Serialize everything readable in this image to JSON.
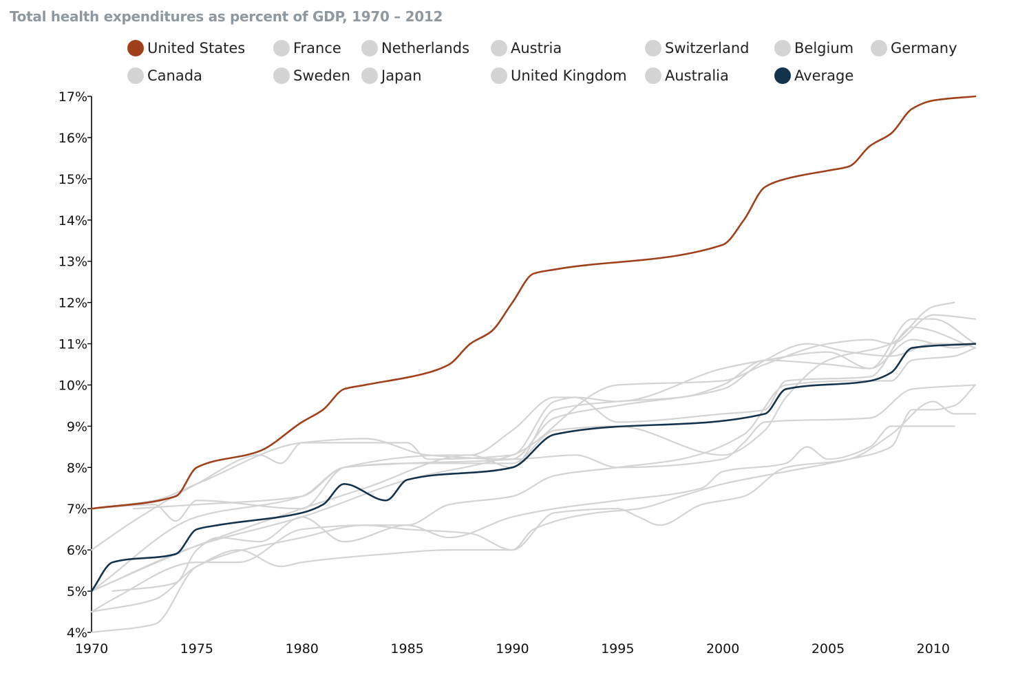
{
  "title": "Total health expenditures as percent of GDP, 1970 – 2012",
  "colors": {
    "us": "#a0401a",
    "average": "#13334d",
    "other": "#d3d3d3",
    "axis": "#000000",
    "title": "#8e98a1"
  },
  "legend": [
    {
      "label": "United States",
      "color": "#a0401a"
    },
    {
      "label": "France",
      "color": "#d3d3d3"
    },
    {
      "label": "Netherlands",
      "color": "#d3d3d3"
    },
    {
      "label": "Austria",
      "color": "#d3d3d3"
    },
    {
      "label": "Switzerland",
      "color": "#d3d3d3"
    },
    {
      "label": "Belgium",
      "color": "#d3d3d3"
    },
    {
      "label": "Germany",
      "color": "#d3d3d3"
    },
    {
      "label": "Canada",
      "color": "#d3d3d3"
    },
    {
      "label": "Sweden",
      "color": "#d3d3d3"
    },
    {
      "label": "Japan",
      "color": "#d3d3d3"
    },
    {
      "label": "United Kingdom",
      "color": "#d3d3d3"
    },
    {
      "label": "Australia",
      "color": "#d3d3d3"
    },
    {
      "label": "Average",
      "color": "#13334d"
    }
  ],
  "chart_data": {
    "type": "line",
    "title": "Total health expenditures as percent of GDP, 1970 – 2012",
    "xlabel": "",
    "ylabel": "",
    "xlim": [
      1970,
      2012
    ],
    "ylim": [
      4,
      17
    ],
    "x_ticks": [
      1970,
      1975,
      1980,
      1985,
      1990,
      1995,
      2000,
      2005,
      2010
    ],
    "y_ticks": [
      4,
      5,
      6,
      7,
      8,
      9,
      10,
      11,
      12,
      13,
      14,
      15,
      16,
      17
    ],
    "y_tick_labels": [
      "4%",
      "5%",
      "6%",
      "7%",
      "8%",
      "9%",
      "10%",
      "11%",
      "12%",
      "13%",
      "14%",
      "15%",
      "16%",
      "17%"
    ],
    "x_tick_labels": [
      "1970",
      "1975",
      "1980",
      "1985",
      "1990",
      "1995",
      "2000",
      "2005",
      "2010"
    ],
    "grid": false,
    "legend_position": "top",
    "series": [
      {
        "name": "United States",
        "color": "#a0401a",
        "width": 2.6,
        "points": [
          [
            1970,
            7.0
          ],
          [
            1974,
            7.3
          ],
          [
            1975,
            8.0
          ],
          [
            1978,
            8.4
          ],
          [
            1980,
            9.1
          ],
          [
            1981,
            9.4
          ],
          [
            1982,
            9.9
          ],
          [
            1983,
            10.0
          ],
          [
            1986,
            10.3
          ],
          [
            1987,
            10.5
          ],
          [
            1988,
            11.0
          ],
          [
            1989,
            11.3
          ],
          [
            1990,
            12.0
          ],
          [
            1991,
            12.7
          ],
          [
            1992,
            12.8
          ],
          [
            2000,
            13.4
          ],
          [
            2001,
            14.0
          ],
          [
            2002,
            14.8
          ],
          [
            2003,
            15.0
          ],
          [
            2005,
            15.2
          ],
          [
            2006,
            15.3
          ],
          [
            2007,
            15.8
          ],
          [
            2008,
            16.1
          ],
          [
            2009,
            16.7
          ],
          [
            2010,
            16.9
          ],
          [
            2012,
            17.0
          ]
        ]
      },
      {
        "name": "France",
        "color": "#d3d3d3",
        "width": 2.2,
        "points": [
          [
            1970,
            5.0
          ],
          [
            1975,
            6.1
          ],
          [
            1980,
            6.8
          ],
          [
            1985,
            7.7
          ],
          [
            1990,
            8.3
          ],
          [
            1995,
            10.0
          ],
          [
            2000,
            10.1
          ],
          [
            2002,
            10.5
          ],
          [
            2005,
            11.0
          ],
          [
            2007,
            11.1
          ],
          [
            2008,
            11.0
          ],
          [
            2010,
            11.7
          ],
          [
            2012,
            11.6
          ]
        ]
      },
      {
        "name": "Netherlands",
        "color": "#d3d3d3",
        "width": 2.2,
        "points": [
          [
            1972,
            7.0
          ],
          [
            1975,
            7.1
          ],
          [
            1980,
            7.3
          ],
          [
            1982,
            8.0
          ],
          [
            1985,
            8.1
          ],
          [
            1990,
            8.1
          ],
          [
            1992,
            8.9
          ],
          [
            1995,
            9.0
          ],
          [
            2000,
            8.3
          ],
          [
            2002,
            8.9
          ],
          [
            2003,
            9.7
          ],
          [
            2005,
            10.6
          ],
          [
            2008,
            11.0
          ],
          [
            2010,
            11.9
          ],
          [
            2011,
            12.0
          ]
        ]
      },
      {
        "name": "Austria",
        "color": "#d3d3d3",
        "width": 2.2,
        "points": [
          [
            1970,
            5.0
          ],
          [
            1975,
            6.1
          ],
          [
            1980,
            7.0
          ],
          [
            1983,
            7.5
          ],
          [
            1988,
            8.3
          ],
          [
            1990,
            8.0
          ],
          [
            1992,
            9.4
          ],
          [
            1995,
            9.6
          ],
          [
            1998,
            9.7
          ],
          [
            2000,
            10.0
          ],
          [
            2002,
            10.6
          ],
          [
            2005,
            10.5
          ],
          [
            2007,
            10.4
          ],
          [
            2009,
            11.1
          ],
          [
            2011,
            10.9
          ],
          [
            2012,
            11.0
          ]
        ]
      },
      {
        "name": "Switzerland",
        "color": "#d3d3d3",
        "width": 2.2,
        "points": [
          [
            1970,
            5.0
          ],
          [
            1975,
            6.8
          ],
          [
            1980,
            7.3
          ],
          [
            1982,
            8.0
          ],
          [
            1985,
            8.1
          ],
          [
            1990,
            8.2
          ],
          [
            1992,
            9.2
          ],
          [
            1995,
            9.5
          ],
          [
            2000,
            9.9
          ],
          [
            2002,
            10.6
          ],
          [
            2004,
            11.0
          ],
          [
            2006,
            10.8
          ],
          [
            2008,
            10.7
          ],
          [
            2010,
            11.0
          ],
          [
            2012,
            11.0
          ]
        ]
      },
      {
        "name": "Belgium",
        "color": "#d3d3d3",
        "width": 2.2,
        "points": [
          [
            1970,
            4.0
          ],
          [
            1973,
            4.2
          ],
          [
            1975,
            5.6
          ],
          [
            1980,
            6.3
          ],
          [
            1983,
            6.6
          ],
          [
            1985,
            6.6
          ],
          [
            1987,
            7.1
          ],
          [
            1990,
            7.3
          ],
          [
            1992,
            7.8
          ],
          [
            1995,
            8.0
          ],
          [
            1998,
            8.2
          ],
          [
            2001,
            8.8
          ],
          [
            2003,
            10.0
          ],
          [
            2006,
            10.1
          ],
          [
            2008,
            10.1
          ],
          [
            2009,
            10.6
          ],
          [
            2011,
            10.7
          ],
          [
            2012,
            10.9
          ]
        ]
      },
      {
        "name": "Germany",
        "color": "#d3d3d3",
        "width": 2.2,
        "points": [
          [
            1970,
            6.0
          ],
          [
            1972,
            6.7
          ],
          [
            1975,
            7.6
          ],
          [
            1978,
            8.3
          ],
          [
            1979,
            8.1
          ],
          [
            1980,
            8.6
          ],
          [
            1985,
            8.6
          ],
          [
            1986,
            8.2
          ],
          [
            1990,
            8.3
          ],
          [
            1992,
            9.6
          ],
          [
            1993,
            9.7
          ],
          [
            1995,
            9.6
          ],
          [
            2000,
            10.4
          ],
          [
            2002,
            10.6
          ],
          [
            2005,
            10.8
          ],
          [
            2007,
            10.4
          ],
          [
            2009,
            11.6
          ],
          [
            2010,
            11.6
          ],
          [
            2012,
            11.0
          ]
        ]
      },
      {
        "name": "Canada",
        "color": "#d3d3d3",
        "width": 2.2,
        "points": [
          [
            1970,
            7.0
          ],
          [
            1973,
            7.1
          ],
          [
            1974,
            6.7
          ],
          [
            1975,
            7.2
          ],
          [
            1980,
            7.0
          ],
          [
            1982,
            8.0
          ],
          [
            1987,
            8.3
          ],
          [
            1988,
            8.3
          ],
          [
            1990,
            8.9
          ],
          [
            1992,
            9.7
          ],
          [
            1993,
            9.7
          ],
          [
            1995,
            9.1
          ],
          [
            2000,
            9.3
          ],
          [
            2002,
            9.4
          ],
          [
            2003,
            10.1
          ],
          [
            2007,
            10.2
          ],
          [
            2009,
            11.4
          ],
          [
            2012,
            10.9
          ]
        ]
      },
      {
        "name": "Sweden",
        "color": "#d3d3d3",
        "width": 2.2,
        "points": [
          [
            1970,
            7.0
          ],
          [
            1973,
            7.2
          ],
          [
            1975,
            7.6
          ],
          [
            1980,
            8.6
          ],
          [
            1983,
            8.7
          ],
          [
            1986,
            8.3
          ],
          [
            1990,
            8.2
          ],
          [
            1993,
            8.3
          ],
          [
            1995,
            8.0
          ],
          [
            2000,
            8.2
          ],
          [
            2001,
            8.6
          ],
          [
            2002,
            9.1
          ],
          [
            2007,
            9.2
          ],
          [
            2009,
            9.9
          ],
          [
            2012,
            10.0
          ]
        ]
      },
      {
        "name": "Japan",
        "color": "#d3d3d3",
        "width": 2.2,
        "points": [
          [
            1970,
            4.5
          ],
          [
            1971,
            4.8
          ],
          [
            1975,
            5.7
          ],
          [
            1977,
            5.7
          ],
          [
            1980,
            6.5
          ],
          [
            1983,
            6.6
          ],
          [
            1985,
            6.5
          ],
          [
            1988,
            6.4
          ],
          [
            1990,
            6.0
          ],
          [
            1991,
            6.5
          ],
          [
            1994,
            6.9
          ],
          [
            1996,
            7.0
          ],
          [
            1998,
            7.3
          ],
          [
            2000,
            7.6
          ],
          [
            2003,
            7.9
          ],
          [
            2006,
            8.2
          ],
          [
            2008,
            8.5
          ],
          [
            2009,
            9.4
          ],
          [
            2010,
            9.4
          ],
          [
            2011,
            9.5
          ],
          [
            2012,
            10.0
          ]
        ]
      },
      {
        "name": "United Kingdom",
        "color": "#d3d3d3",
        "width": 2.2,
        "points": [
          [
            1970,
            4.5
          ],
          [
            1973,
            4.8
          ],
          [
            1975,
            5.6
          ],
          [
            1977,
            6.0
          ],
          [
            1979,
            5.6
          ],
          [
            1980,
            5.7
          ],
          [
            1984,
            5.9
          ],
          [
            1987,
            6.0
          ],
          [
            1990,
            6.0
          ],
          [
            1992,
            6.9
          ],
          [
            1995,
            7.0
          ],
          [
            1996,
            6.8
          ],
          [
            1997,
            6.6
          ],
          [
            1999,
            7.1
          ],
          [
            2001,
            7.3
          ],
          [
            2003,
            8.0
          ],
          [
            2006,
            8.2
          ],
          [
            2008,
            8.8
          ],
          [
            2010,
            9.6
          ],
          [
            2011,
            9.3
          ],
          [
            2012,
            9.3
          ]
        ]
      },
      {
        "name": "Australia",
        "color": "#d3d3d3",
        "width": 2.2,
        "points": [
          [
            1971,
            5.0
          ],
          [
            1974,
            5.2
          ],
          [
            1975,
            6.0
          ],
          [
            1976,
            6.3
          ],
          [
            1978,
            6.2
          ],
          [
            1980,
            6.8
          ],
          [
            1982,
            6.2
          ],
          [
            1985,
            6.6
          ],
          [
            1987,
            6.3
          ],
          [
            1990,
            6.8
          ],
          [
            1992,
            7.0
          ],
          [
            1995,
            7.2
          ],
          [
            1999,
            7.5
          ],
          [
            2000,
            7.9
          ],
          [
            2003,
            8.1
          ],
          [
            2004,
            8.5
          ],
          [
            2005,
            8.2
          ],
          [
            2007,
            8.5
          ],
          [
            2008,
            9.0
          ],
          [
            2010,
            9.0
          ],
          [
            2011,
            9.0
          ]
        ]
      },
      {
        "name": "Average",
        "color": "#13334d",
        "width": 2.6,
        "points": [
          [
            1970,
            5.0
          ],
          [
            1971,
            5.7
          ],
          [
            1974,
            5.9
          ],
          [
            1975,
            6.5
          ],
          [
            1976,
            6.6
          ],
          [
            1980,
            6.9
          ],
          [
            1981,
            7.1
          ],
          [
            1982,
            7.6
          ],
          [
            1984,
            7.2
          ],
          [
            1985,
            7.7
          ],
          [
            1990,
            8.0
          ],
          [
            1992,
            8.8
          ],
          [
            2002,
            9.3
          ],
          [
            2003,
            9.9
          ],
          [
            2007,
            10.1
          ],
          [
            2008,
            10.3
          ],
          [
            2009,
            10.9
          ],
          [
            2012,
            11.0
          ]
        ]
      }
    ]
  }
}
